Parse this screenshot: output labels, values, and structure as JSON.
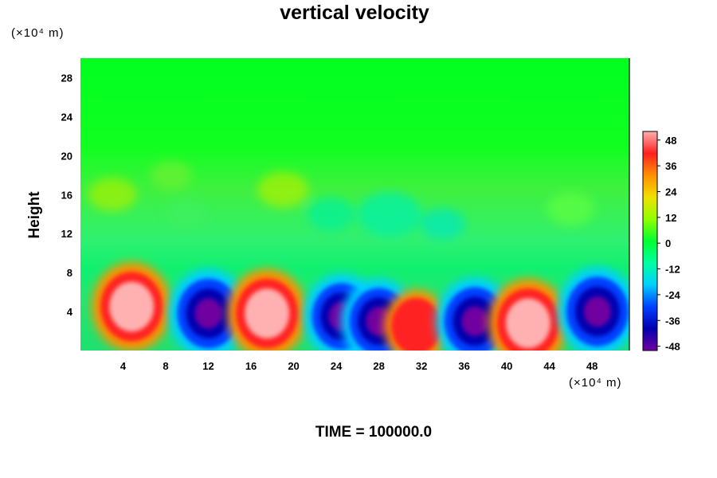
{
  "chart_data": {
    "type": "heatmap",
    "title": "vertical velocity",
    "xlabel": "",
    "ylabel": "Height",
    "x_unit": "(×10⁴ m)",
    "y_unit": "(×10⁴ m)",
    "x_ticks": [
      4,
      8,
      12,
      16,
      20,
      24,
      28,
      32,
      36,
      40,
      44,
      48
    ],
    "y_ticks": [
      4,
      8,
      12,
      16,
      20,
      24,
      28
    ],
    "xlim": [
      0,
      51.5
    ],
    "ylim": [
      0,
      30
    ],
    "colorbar": {
      "ticks": [
        48,
        36,
        24,
        12,
        0,
        -12,
        -24,
        -36,
        -48
      ],
      "range": [
        -50,
        52
      ],
      "colors": [
        "#ffb0b0",
        "#ff2020",
        "#ff9000",
        "#f0e000",
        "#90ff00",
        "#00ff30",
        "#00ffa0",
        "#00d0ff",
        "#0040ff",
        "#0000b0",
        "#7000a0"
      ]
    },
    "features": [
      {
        "label": "updraft",
        "x_center": 4.8,
        "height_center": 4.5,
        "peak": 50
      },
      {
        "label": "downdraft",
        "x_center": 12.0,
        "height_center": 3.8,
        "peak": -50
      },
      {
        "label": "updraft",
        "x_center": 17.5,
        "height_center": 3.8,
        "peak": 50
      },
      {
        "label": "downdraft",
        "x_center": 24.5,
        "height_center": 3.5,
        "peak": -45
      },
      {
        "label": "downdraft",
        "x_center": 28.0,
        "height_center": 3.0,
        "peak": -45
      },
      {
        "label": "updraft",
        "x_center": 31.5,
        "height_center": 2.5,
        "peak": 30
      },
      {
        "label": "downdraft",
        "x_center": 37.0,
        "height_center": 3.0,
        "peak": -48
      },
      {
        "label": "updraft",
        "x_center": 42.0,
        "height_center": 2.8,
        "peak": 50
      },
      {
        "label": "downdraft",
        "x_center": 48.5,
        "height_center": 4.0,
        "peak": -50
      }
    ]
  },
  "footer": {
    "time_label": "TIME = 100000.0"
  }
}
